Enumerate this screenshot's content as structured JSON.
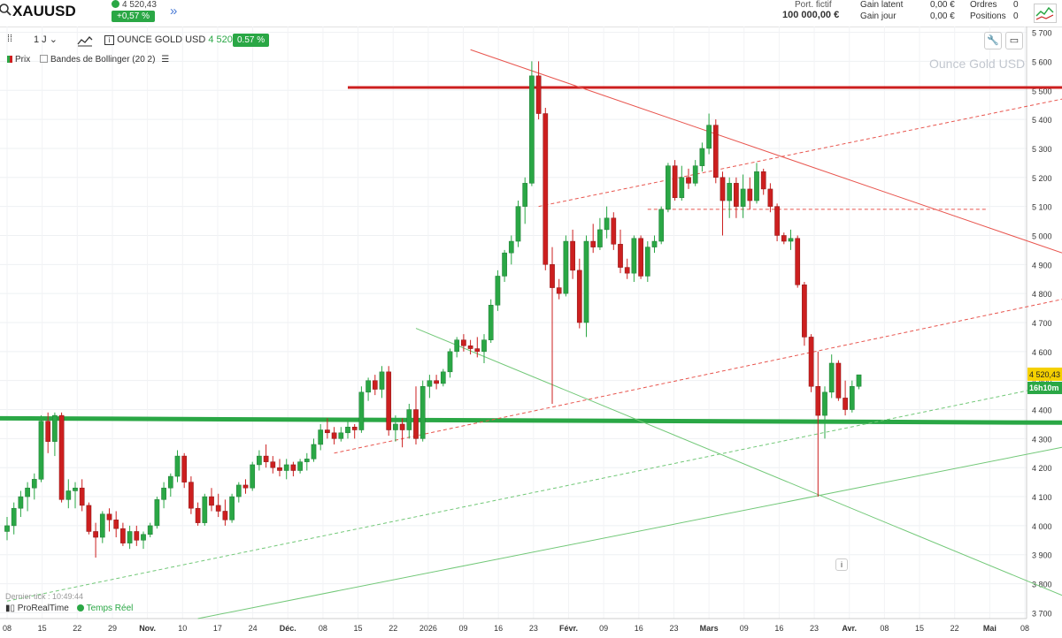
{
  "header": {
    "symbol": "XAUUSD",
    "price": "4 520,43",
    "change": "+0,57 %",
    "port_label": "Port. fictif",
    "port_value": "100 000,00 €",
    "gain_latent_label": "Gain latent",
    "gain_latent_value": "0,00 €",
    "gain_jour_label": "Gain jour",
    "gain_jour_value": "0,00 €",
    "ordres_label": "Ordres",
    "ordres_value": "0",
    "positions_label": "Positions",
    "positions_value": "0"
  },
  "toolbar": {
    "timeframe": "1 J",
    "instrument": "OUNCE GOLD USD",
    "last": "4 520,43",
    "pct": "0.57 %"
  },
  "legend": {
    "prix": "Prix",
    "bollinger": "Bandes de Bollinger (20 2)"
  },
  "watermark": "Ounce Gold USD",
  "footer": {
    "last_tick": "Dernier tick : 10:49:44",
    "brand": "ProRealTime",
    "mode": "Temps Réel"
  },
  "colors": {
    "up": "#2aa745",
    "down": "#cc1f1f",
    "accent": "#4a7bd6",
    "price_tag": "#f5d000",
    "timer_tag": "#2aa745"
  },
  "chart_data": {
    "type": "candlestick",
    "timeframe": "daily",
    "price_label": "4 520,43",
    "timer_label": "16h10m",
    "ylim": [
      3680,
      5720
    ],
    "y_ticks": [
      3700,
      3800,
      3900,
      4000,
      4100,
      4200,
      4300,
      4400,
      4500,
      4600,
      4700,
      4800,
      4900,
      5000,
      5100,
      5200,
      5300,
      5400,
      5500,
      5600,
      5700
    ],
    "x_ticks": [
      "08",
      "15",
      "22",
      "29",
      "Nov.",
      "10",
      "17",
      "24",
      "Déc.",
      "08",
      "15",
      "22",
      "2026",
      "09",
      "16",
      "23",
      "Févr.",
      "09",
      "16",
      "23",
      "Mars",
      "09",
      "16",
      "23",
      "Avr.",
      "08",
      "15",
      "22",
      "Mai",
      "08"
    ],
    "candles": [
      [
        3980,
        4030,
        3950,
        4000
      ],
      [
        4000,
        4080,
        3970,
        4060
      ],
      [
        4060,
        4120,
        4030,
        4100
      ],
      [
        4100,
        4150,
        4050,
        4130
      ],
      [
        4130,
        4180,
        4090,
        4160
      ],
      [
        4160,
        4380,
        4150,
        4360
      ],
      [
        4360,
        4390,
        4250,
        4290
      ],
      [
        4290,
        4390,
        4240,
        4380
      ],
      [
        4380,
        4390,
        4080,
        4090
      ],
      [
        4090,
        4160,
        4060,
        4120
      ],
      [
        4120,
        4150,
        4060,
        4130
      ],
      [
        4130,
        4160,
        4050,
        4070
      ],
      [
        4070,
        4080,
        3970,
        3980
      ],
      [
        3980,
        4010,
        3890,
        3960
      ],
      [
        3960,
        4050,
        3940,
        4040
      ],
      [
        4040,
        4060,
        3980,
        4020
      ],
      [
        4020,
        4050,
        3960,
        3990
      ],
      [
        3990,
        4010,
        3930,
        3940
      ],
      [
        3940,
        4000,
        3920,
        3980
      ],
      [
        3980,
        4000,
        3930,
        3950
      ],
      [
        3950,
        3980,
        3920,
        3970
      ],
      [
        3970,
        4010,
        3960,
        4000
      ],
      [
        4000,
        4100,
        3990,
        4090
      ],
      [
        4090,
        4150,
        4060,
        4130
      ],
      [
        4130,
        4180,
        4100,
        4170
      ],
      [
        4170,
        4260,
        4150,
        4240
      ],
      [
        4240,
        4250,
        4130,
        4150
      ],
      [
        4150,
        4170,
        4040,
        4060
      ],
      [
        4060,
        4080,
        4000,
        4010
      ],
      [
        4010,
        4110,
        4000,
        4100
      ],
      [
        4100,
        4130,
        4050,
        4070
      ],
      [
        4070,
        4110,
        4030,
        4050
      ],
      [
        4050,
        4090,
        4000,
        4020
      ],
      [
        4020,
        4110,
        4010,
        4100
      ],
      [
        4100,
        4150,
        4080,
        4140
      ],
      [
        4140,
        4160,
        4110,
        4130
      ],
      [
        4130,
        4220,
        4120,
        4210
      ],
      [
        4210,
        4260,
        4190,
        4240
      ],
      [
        4240,
        4280,
        4200,
        4220
      ],
      [
        4220,
        4240,
        4180,
        4200
      ],
      [
        4200,
        4230,
        4170,
        4190
      ],
      [
        4190,
        4230,
        4160,
        4210
      ],
      [
        4210,
        4220,
        4170,
        4190
      ],
      [
        4190,
        4230,
        4180,
        4220
      ],
      [
        4220,
        4250,
        4190,
        4230
      ],
      [
        4230,
        4300,
        4220,
        4280
      ],
      [
        4280,
        4350,
        4260,
        4330
      ],
      [
        4330,
        4370,
        4300,
        4320
      ],
      [
        4320,
        4340,
        4280,
        4300
      ],
      [
        4300,
        4340,
        4290,
        4320
      ],
      [
        4320,
        4360,
        4300,
        4340
      ],
      [
        4340,
        4350,
        4300,
        4330
      ],
      [
        4330,
        4480,
        4320,
        4460
      ],
      [
        4460,
        4510,
        4430,
        4500
      ],
      [
        4500,
        4520,
        4450,
        4470
      ],
      [
        4470,
        4550,
        4440,
        4530
      ],
      [
        4530,
        4550,
        4310,
        4330
      ],
      [
        4330,
        4380,
        4290,
        4350
      ],
      [
        4350,
        4370,
        4270,
        4330
      ],
      [
        4330,
        4420,
        4300,
        4400
      ],
      [
        4400,
        4480,
        4280,
        4300
      ],
      [
        4300,
        4500,
        4290,
        4480
      ],
      [
        4480,
        4520,
        4440,
        4500
      ],
      [
        4500,
        4520,
        4470,
        4490
      ],
      [
        4490,
        4540,
        4480,
        4530
      ],
      [
        4530,
        4610,
        4510,
        4600
      ],
      [
        4600,
        4650,
        4580,
        4640
      ],
      [
        4640,
        4660,
        4600,
        4620
      ],
      [
        4620,
        4640,
        4590,
        4610
      ],
      [
        4610,
        4650,
        4580,
        4600
      ],
      [
        4600,
        4660,
        4560,
        4640
      ],
      [
        4640,
        4780,
        4630,
        4760
      ],
      [
        4760,
        4880,
        4740,
        4860
      ],
      [
        4860,
        4950,
        4840,
        4940
      ],
      [
        4940,
        5000,
        4900,
        4980
      ],
      [
        4980,
        5120,
        4960,
        5100
      ],
      [
        5100,
        5200,
        5040,
        5180
      ],
      [
        5180,
        5600,
        5170,
        5550
      ],
      [
        5550,
        5600,
        5400,
        5420
      ],
      [
        5420,
        5440,
        4880,
        4900
      ],
      [
        4900,
        4960,
        4420,
        4820
      ],
      [
        4820,
        4850,
        4780,
        4800
      ],
      [
        4800,
        5000,
        4790,
        4980
      ],
      [
        4980,
        5020,
        4850,
        4880
      ],
      [
        4880,
        4920,
        4680,
        4700
      ],
      [
        4700,
        5000,
        4650,
        4980
      ],
      [
        4980,
        5040,
        4940,
        4960
      ],
      [
        4960,
        5060,
        4950,
        5020
      ],
      [
        5020,
        5100,
        4990,
        5060
      ],
      [
        5060,
        5080,
        4950,
        4970
      ],
      [
        4970,
        5020,
        4870,
        4890
      ],
      [
        4890,
        4920,
        4850,
        4870
      ],
      [
        4870,
        5000,
        4840,
        4990
      ],
      [
        4990,
        5000,
        4850,
        4860
      ],
      [
        4860,
        4980,
        4840,
        4960
      ],
      [
        4960,
        5000,
        4940,
        4980
      ],
      [
        4980,
        5100,
        4970,
        5090
      ],
      [
        5090,
        5250,
        5080,
        5240
      ],
      [
        5240,
        5260,
        5120,
        5130
      ],
      [
        5130,
        5240,
        5120,
        5200
      ],
      [
        5200,
        5230,
        5160,
        5180
      ],
      [
        5180,
        5260,
        5170,
        5240
      ],
      [
        5240,
        5320,
        5220,
        5300
      ],
      [
        5300,
        5420,
        5280,
        5380
      ],
      [
        5380,
        5400,
        5180,
        5200
      ],
      [
        5200,
        5220,
        5000,
        5120
      ],
      [
        5120,
        5200,
        5060,
        5180
      ],
      [
        5180,
        5200,
        5060,
        5100
      ],
      [
        5100,
        5210,
        5060,
        5160
      ],
      [
        5160,
        5200,
        5090,
        5120
      ],
      [
        5120,
        5250,
        5110,
        5220
      ],
      [
        5220,
        5230,
        5140,
        5160
      ],
      [
        5160,
        5180,
        5080,
        5100
      ],
      [
        5100,
        5110,
        4980,
        5000
      ],
      [
        5000,
        5010,
        4970,
        4980
      ],
      [
        4980,
        5020,
        4950,
        4990
      ],
      [
        4990,
        5000,
        4820,
        4830
      ],
      [
        4830,
        4840,
        4620,
        4650
      ],
      [
        4650,
        4660,
        4460,
        4480
      ],
      [
        4480,
        4600,
        4100,
        4380
      ],
      [
        4380,
        4480,
        4300,
        4460
      ],
      [
        4460,
        4590,
        4440,
        4560
      ],
      [
        4560,
        4570,
        4430,
        4440
      ],
      [
        4440,
        4500,
        4380,
        4400
      ],
      [
        4400,
        4500,
        4390,
        4480
      ],
      [
        4480,
        4520,
        4470,
        4520
      ]
    ],
    "lines": [
      {
        "name": "support-horizontal",
        "color": "#2aa745",
        "style": "solid",
        "width": 5,
        "p1": [
          -2,
          4370
        ],
        "p2": [
          158,
          4355
        ]
      },
      {
        "name": "resistance-horizontal",
        "color": "#cc1f1f",
        "style": "solid",
        "width": 3,
        "p1": [
          50,
          5510
        ],
        "p2": [
          158,
          5510
        ]
      },
      {
        "name": "resistance-diagonal",
        "color": "#e8554e",
        "style": "solid",
        "width": 1,
        "p1": [
          68,
          5640
        ],
        "p2": [
          158,
          4940
        ]
      },
      {
        "name": "channel-lower-red",
        "color": "#e8554e",
        "style": "dash",
        "width": 1,
        "p1": [
          48,
          4250
        ],
        "p2": [
          158,
          4780
        ]
      },
      {
        "name": "channel-upper-red",
        "color": "#e8554e",
        "style": "dash",
        "width": 1,
        "p1": [
          78,
          5100
        ],
        "p2": [
          158,
          5470
        ]
      },
      {
        "name": "mid-red",
        "color": "#e8554e",
        "style": "dash",
        "width": 1,
        "p1": [
          94,
          5090
        ],
        "p2": [
          144,
          5090
        ]
      },
      {
        "name": "green-desc-diagonal",
        "color": "#72c878",
        "style": "solid",
        "width": 1,
        "p1": [
          60,
          4680
        ],
        "p2": [
          158,
          3760
        ]
      },
      {
        "name": "green-rising-solid",
        "color": "#72c878",
        "style": "solid",
        "width": 1,
        "p1": [
          28,
          3680
        ],
        "p2": [
          158,
          4270
        ]
      },
      {
        "name": "green-rising-dash",
        "color": "#72c878",
        "style": "dash",
        "width": 1,
        "p1": [
          0,
          3740
        ],
        "p2": [
          158,
          4490
        ]
      }
    ]
  }
}
